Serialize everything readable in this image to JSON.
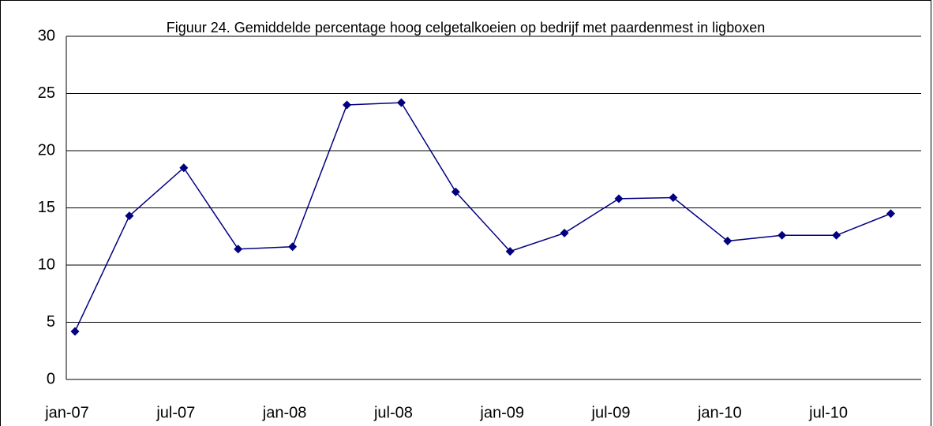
{
  "chart_data": {
    "type": "line",
    "title": "Figuur 24. Gemiddelde percentage hoog celgetalkoeien op bedrijf met paardenmest in ligboxen",
    "categories": [
      "jan-07",
      null,
      "jul-07",
      null,
      "jan-08",
      null,
      "jul-08",
      null,
      "jan-09",
      null,
      "jul-09",
      null,
      "jan-10",
      null,
      "jul-10",
      null
    ],
    "values": [
      4.2,
      14.3,
      18.5,
      11.4,
      11.6,
      24.0,
      24.2,
      16.4,
      11.2,
      12.8,
      15.8,
      15.9,
      12.1,
      12.6,
      12.6,
      14.5
    ],
    "color": "#000080",
    "ylim": [
      0,
      30
    ],
    "yticks": [
      0,
      5,
      10,
      15,
      20,
      25,
      30
    ],
    "grid": true
  }
}
